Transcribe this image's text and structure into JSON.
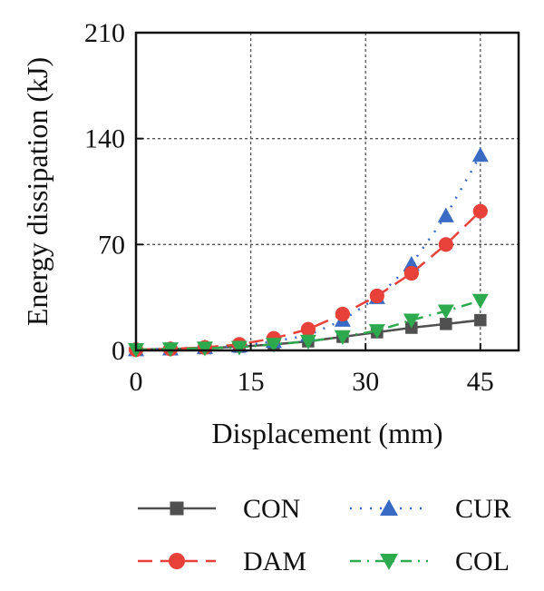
{
  "chart_data": {
    "type": "line",
    "xlabel": "Displacement (mm)",
    "ylabel": "Energy dissipation (kJ)",
    "xlim": [
      0,
      50
    ],
    "ylim": [
      0,
      210
    ],
    "xticks": [
      0,
      15,
      30,
      45
    ],
    "yticks": [
      0,
      70,
      140,
      210
    ],
    "grid": true,
    "legend_placement": "bottom",
    "series": [
      {
        "name": "CON",
        "color": "#505050",
        "marker": "square",
        "line_style": "solid",
        "x": [
          0,
          4.5,
          9,
          13.5,
          18,
          22.5,
          27,
          31.5,
          36,
          40.5,
          45
        ],
        "y": [
          0.5,
          1,
          1.5,
          2.5,
          4,
          6,
          9,
          12,
          15,
          17.5,
          20
        ]
      },
      {
        "name": "CUR",
        "color": "#3a6bc4",
        "marker": "triangle-up",
        "line_style": "dotted",
        "x": [
          0,
          4.5,
          9,
          13.5,
          18,
          22.5,
          27,
          31.5,
          36,
          40.5,
          45
        ],
        "y": [
          0.5,
          1,
          2,
          3,
          6,
          10,
          20,
          35,
          57,
          89,
          129
        ]
      },
      {
        "name": "DAM",
        "color": "#e8413a",
        "marker": "circle",
        "line_style": "dashed",
        "x": [
          0,
          4.5,
          9,
          13.5,
          18,
          22.5,
          27,
          31.5,
          36,
          40.5,
          45
        ],
        "y": [
          0.5,
          1,
          2,
          4,
          8,
          14,
          24,
          36,
          51,
          70,
          92
        ]
      },
      {
        "name": "COL",
        "color": "#2eaa4e",
        "marker": "triangle-down",
        "line_style": "dashdot",
        "x": [
          0,
          4.5,
          9,
          13.5,
          18,
          22.5,
          27,
          31.5,
          36,
          40.5,
          45
        ],
        "y": [
          0.5,
          1,
          1.5,
          2,
          4,
          6,
          9,
          13,
          20,
          26,
          33
        ]
      }
    ]
  }
}
